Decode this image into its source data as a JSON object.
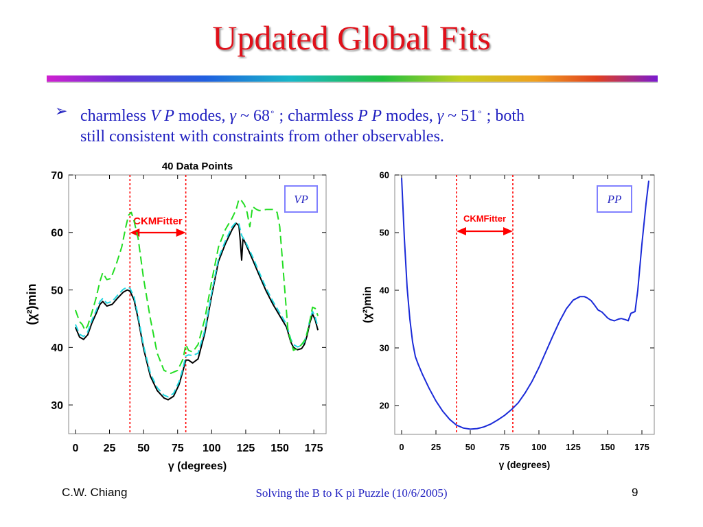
{
  "slide": {
    "title": "Updated Global Fits",
    "bullet": {
      "t1": "charmless ",
      "t2": "V P",
      "t3": " modes, ",
      "t4": "γ",
      "t5": "  ~ 68",
      "t6": "∘",
      "t7": " ; charmless ",
      "t8": "P P",
      "t9": " modes, ",
      "t10": "γ",
      "t11": " ~ 51",
      "t12": "∘",
      "t13": " ; both",
      "line2": "still consistent with constraints from other observables."
    }
  },
  "footer": {
    "author": "C.W. Chiang",
    "talk": "Solving the B to K pi Puzzle (10/6/2005)",
    "page": "9"
  },
  "chart_data": [
    {
      "type": "line",
      "title": "40 Data Points",
      "label": "VP",
      "xlabel": "γ (degrees)",
      "ylabel": "(χ²)min",
      "xlim": [
        -5,
        184
      ],
      "ylim": [
        25,
        70
      ],
      "xticks": [
        0,
        25,
        50,
        75,
        100,
        125,
        150,
        175
      ],
      "yticks": [
        30,
        40,
        50,
        60,
        70
      ],
      "band": {
        "label": "CKMFitter",
        "from": 40,
        "to": 81
      },
      "colors": {
        "black": "#000000",
        "cyan": "#22d8e0",
        "green": "#22dd22",
        "band": "#ff0000"
      },
      "series": [
        {
          "color": "black",
          "dash": "solid",
          "x": [
            0,
            3,
            6,
            9,
            12,
            15,
            18,
            20,
            23,
            27,
            31,
            35,
            38,
            40,
            43,
            46,
            50,
            55,
            60,
            65,
            68,
            72,
            76,
            79,
            81,
            83,
            86,
            90,
            95,
            100,
            105,
            110,
            115,
            118,
            120,
            121,
            122,
            123,
            124,
            125,
            130,
            135,
            140,
            145,
            150,
            155,
            158,
            160,
            163,
            166,
            168,
            170,
            172,
            174,
            176,
            178
          ],
          "y": [
            43.5,
            41.8,
            41.4,
            42.2,
            44.2,
            45.8,
            47.5,
            48.0,
            47.2,
            47.5,
            48.6,
            49.6,
            50.0,
            49.8,
            48.3,
            45.0,
            39.8,
            35.0,
            32.5,
            31.2,
            30.9,
            31.5,
            33.5,
            36.0,
            37.8,
            37.8,
            37.3,
            38.0,
            42.5,
            49.0,
            55.0,
            58.0,
            60.5,
            61.6,
            61.2,
            58.5,
            55.2,
            59.0,
            58.5,
            58.0,
            55.3,
            52.5,
            49.8,
            47.5,
            45.5,
            43.5,
            41.0,
            40.0,
            39.6,
            39.8,
            40.5,
            42.0,
            44.2,
            45.8,
            44.8,
            43.0
          ]
        },
        {
          "color": "cyan",
          "dash": "dash",
          "x": [
            0,
            3,
            6,
            9,
            12,
            15,
            18,
            20,
            23,
            27,
            31,
            35,
            38,
            40,
            43,
            46,
            50,
            55,
            60,
            65,
            68,
            72,
            76,
            79,
            81,
            83,
            86,
            90,
            95,
            100,
            105,
            110,
            115,
            118,
            120,
            122,
            125,
            130,
            135,
            140,
            145,
            150,
            155,
            158,
            160,
            163,
            166,
            168,
            170,
            172,
            174,
            176,
            178
          ],
          "y": [
            44.0,
            42.3,
            41.9,
            42.7,
            44.7,
            46.3,
            48.0,
            48.5,
            47.7,
            48.0,
            49.1,
            50.1,
            50.5,
            50.3,
            48.8,
            45.5,
            40.3,
            35.5,
            33.0,
            31.7,
            31.4,
            32.0,
            34.0,
            36.5,
            38.5,
            38.7,
            38.6,
            39.0,
            43.0,
            49.5,
            55.5,
            58.5,
            61.0,
            61.8,
            61.5,
            59.5,
            58.3,
            55.8,
            53.0,
            50.3,
            48.0,
            46.0,
            44.0,
            41.5,
            40.5,
            40.1,
            40.3,
            41.0,
            42.5,
            44.7,
            46.3,
            45.3,
            43.5
          ]
        },
        {
          "color": "green",
          "dash": "dash",
          "x": [
            0,
            3,
            5,
            7,
            9,
            12,
            15,
            18,
            20,
            23,
            26,
            30,
            34,
            37,
            39,
            41,
            43,
            46,
            50,
            55,
            60,
            65,
            70,
            75,
            79,
            81,
            83,
            86,
            90,
            95,
            100,
            105,
            110,
            115,
            118,
            120,
            122,
            124,
            126,
            128,
            130,
            133,
            135,
            140,
            145,
            148,
            150,
            153,
            156,
            160,
            163,
            166,
            169,
            172,
            174,
            176,
            178
          ],
          "y": [
            46.5,
            44.5,
            44.0,
            43.0,
            43.8,
            46.0,
            48.5,
            51.5,
            53.0,
            51.8,
            52.0,
            54.5,
            57.5,
            61.0,
            63.0,
            63.5,
            62.0,
            59.0,
            52.0,
            45.0,
            39.0,
            36.0,
            35.5,
            36.0,
            38.0,
            40.5,
            39.5,
            39.2,
            40.5,
            45.0,
            51.5,
            57.5,
            60.5,
            62.5,
            64.0,
            65.8,
            65.5,
            64.8,
            63.5,
            61.0,
            64.5,
            64.0,
            63.8,
            64.0,
            64.0,
            63.5,
            61.0,
            52.0,
            43.0,
            39.5,
            39.8,
            40.5,
            41.5,
            44.5,
            47.0,
            46.8,
            45.5
          ]
        }
      ]
    },
    {
      "type": "line",
      "label": "PP",
      "xlabel": "γ (degrees)",
      "ylabel": "(χ²)min",
      "xlim": [
        -5,
        184
      ],
      "ylim": [
        15,
        60
      ],
      "xticks": [
        0,
        25,
        50,
        75,
        100,
        125,
        150,
        175
      ],
      "yticks": [
        20,
        30,
        40,
        50,
        60
      ],
      "band": {
        "label": "CKMFitter",
        "from": 40,
        "to": 81
      },
      "colors": {
        "curve": "#1a2ad8",
        "band": "#ff0000"
      },
      "series": [
        {
          "color": "curve",
          "dash": "solid",
          "x": [
            0,
            2,
            4,
            6,
            8,
            10,
            12,
            15,
            20,
            25,
            30,
            35,
            40,
            45,
            50,
            55,
            60,
            65,
            70,
            75,
            80,
            85,
            90,
            95,
            100,
            105,
            110,
            115,
            120,
            125,
            130,
            133,
            135,
            138,
            140,
            143,
            146,
            148,
            150,
            152,
            155,
            158,
            160,
            163,
            165,
            167,
            170,
            172,
            175,
            178,
            180
          ],
          "y": [
            59.5,
            49.0,
            40.5,
            35.0,
            31.0,
            28.5,
            27.2,
            25.5,
            23.0,
            20.8,
            19.0,
            17.6,
            16.6,
            16.1,
            15.9,
            16.0,
            16.3,
            16.8,
            17.5,
            18.3,
            19.3,
            20.5,
            22.2,
            24.2,
            26.6,
            29.3,
            32.0,
            34.6,
            36.8,
            38.3,
            38.9,
            38.9,
            38.7,
            38.2,
            37.6,
            36.6,
            36.2,
            35.7,
            35.2,
            34.9,
            34.7,
            35.0,
            35.1,
            34.9,
            34.7,
            36.0,
            36.3,
            40.0,
            48.0,
            55.0,
            59.0
          ]
        }
      ]
    }
  ]
}
